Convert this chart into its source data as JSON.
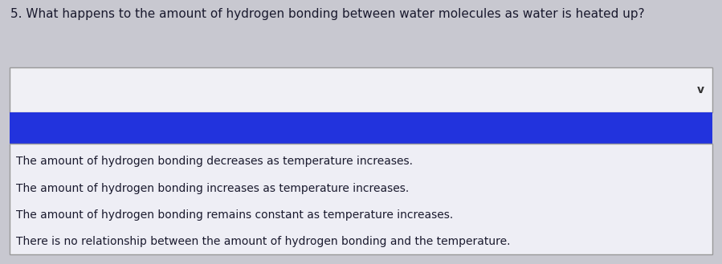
{
  "question": "5. What happens to the amount of hydrogen bonding between water molecules as water is heated up?",
  "question_fontsize": 11.0,
  "question_color": "#1a1a2e",
  "dropdown_box_color": "#f0f0f5",
  "dropdown_border_color": "#999999",
  "dropdown_chevron": "v",
  "blue_bar_color": "#2233dd",
  "options_bg_color": "#eeeef5",
  "options_border_color": "#999999",
  "options": [
    "The amount of hydrogen bonding decreases as temperature increases.",
    "The amount of hydrogen bonding increases as temperature increases.",
    "The amount of hydrogen bonding remains constant as temperature increases.",
    "There is no relationship between the amount of hydrogen bonding and the temperature."
  ],
  "option_fontsize": 10.0,
  "option_color": "#1a1a2e",
  "bg_color": "#c8c8d0"
}
